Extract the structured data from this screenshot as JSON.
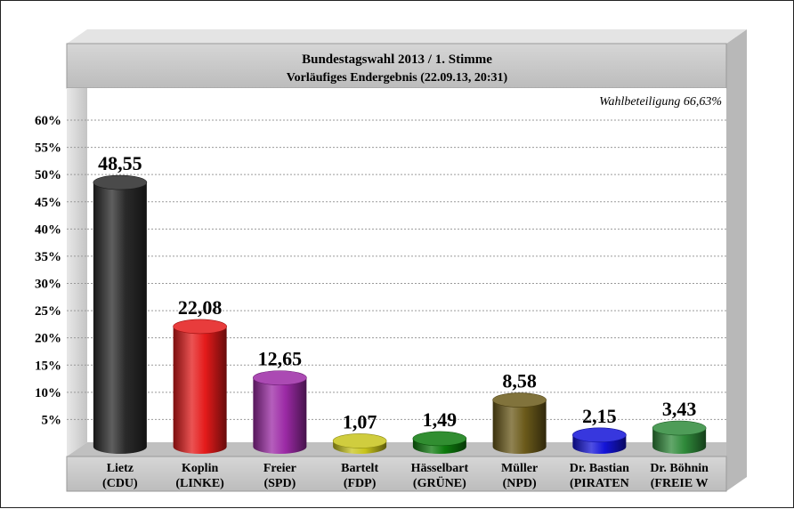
{
  "chart_data": {
    "type": "bar",
    "title": "Bundestagswahl 2013 / 1. Stimme",
    "subtitle": "Vorläufiges Endergebnis (22.09.13, 20:31)",
    "annotation": "Wahlbeteiligung 66,63%",
    "ylim": [
      0,
      60
    ],
    "yticks": [
      "5%",
      "10%",
      "15%",
      "20%",
      "25%",
      "30%",
      "35%",
      "40%",
      "45%",
      "50%",
      "55%",
      "60%"
    ],
    "grid": true,
    "categories": [
      {
        "name": "Lietz",
        "party": "(CDU)"
      },
      {
        "name": "Koplin",
        "party": "(LINKE)"
      },
      {
        "name": "Freier",
        "party": "(SPD)"
      },
      {
        "name": "Bartelt",
        "party": "(FDP)"
      },
      {
        "name": "Hässelbart",
        "party": "(GRÜNE)"
      },
      {
        "name": "Müller",
        "party": "(NPD)"
      },
      {
        "name": "Dr. Bastian",
        "party": "(PIRATEN"
      },
      {
        "name": "Dr. Böhnin",
        "party": "(FREIE W"
      }
    ],
    "values": [
      48.55,
      22.08,
      12.65,
      1.07,
      1.49,
      8.58,
      2.15,
      3.43
    ],
    "labels": [
      "48,55",
      "22,08",
      "12,65",
      "1,07",
      "1,49",
      "8,58",
      "2,15",
      "3,43"
    ],
    "colors": [
      "#2a2a2a",
      "#e41a1a",
      "#9c2aa6",
      "#c8c41c",
      "#0d7a0d",
      "#6b5a1a",
      "#1414d8",
      "#2f8a3a"
    ]
  }
}
